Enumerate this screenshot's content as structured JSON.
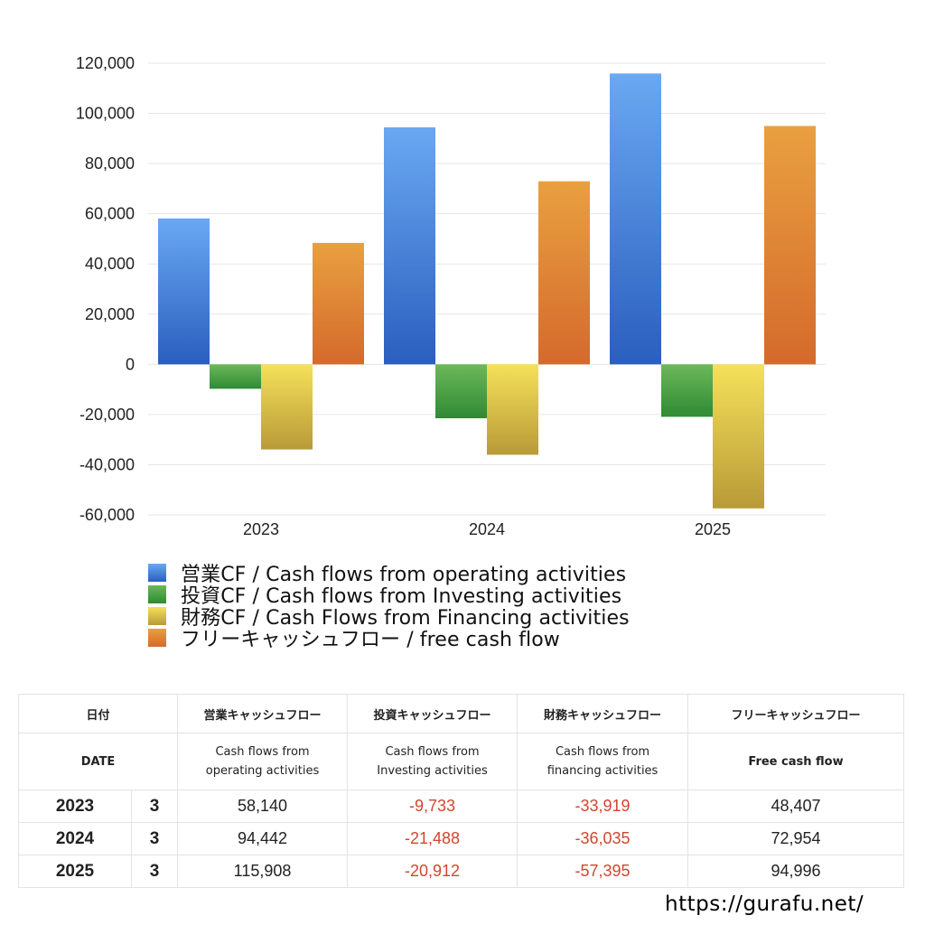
{
  "chart_data": {
    "type": "bar",
    "categories": [
      "2023",
      "2024",
      "2025"
    ],
    "series": [
      {
        "name": "営業CF / Cash flows from operating activities",
        "values": [
          58140,
          94442,
          115908
        ],
        "color_top": "#6aa8f2",
        "color_bottom": "#2a5fbe"
      },
      {
        "name": "投資CF / Cash flows from Investing activities",
        "values": [
          -9733,
          -21488,
          -20912
        ],
        "color_top": "#6cb85a",
        "color_bottom": "#2f8a33"
      },
      {
        "name": "財務CF / Cash Flows from Financing activities",
        "values": [
          -33919,
          -36035,
          -57395
        ],
        "color_top": "#f5e15a",
        "color_bottom": "#b89a38"
      },
      {
        "name": "フリーキャッシュフロー / free cash flow",
        "values": [
          48407,
          72954,
          94996
        ],
        "color_top": "#e9a040",
        "color_bottom": "#d46a2c"
      }
    ],
    "ylim": [
      -60000,
      120000
    ],
    "yticks": [
      "120,000",
      "100,000",
      "80,000",
      "60,000",
      "40,000",
      "20,000",
      "0",
      "-20,000",
      "-40,000",
      "-60,000"
    ],
    "ytick_values": [
      120000,
      100000,
      80000,
      60000,
      40000,
      20000,
      0,
      -20000,
      -40000,
      -60000
    ],
    "grid": true,
    "legend_position": "bottom-left"
  },
  "table": {
    "header_jp": [
      "日付",
      "営業キャッシュフロー",
      "投資キャッシュフロー",
      "財務キャッシュフロー",
      "フリーキャッシュフロー"
    ],
    "header_en_date": "DATE",
    "header_en": {
      "operating_1": "Cash flows from",
      "operating_2": "operating activities",
      "investing_1": "Cash flows from",
      "investing_2": "Investing activities",
      "financing_1": "Cash flows from",
      "financing_2": "financing activities",
      "free": "Free cash flow"
    },
    "rows": [
      {
        "year": "2023",
        "month": "3",
        "operating": "58,140",
        "investing": "-9,733",
        "financing": "-33,919",
        "free": "48,407"
      },
      {
        "year": "2024",
        "month": "3",
        "operating": "94,442",
        "investing": "-21,488",
        "financing": "-36,035",
        "free": "72,954"
      },
      {
        "year": "2025",
        "month": "3",
        "operating": "115,908",
        "investing": "-20,912",
        "financing": "-57,395",
        "free": "94,996"
      }
    ]
  },
  "footer": {
    "url": "https://gurafu.net/"
  }
}
